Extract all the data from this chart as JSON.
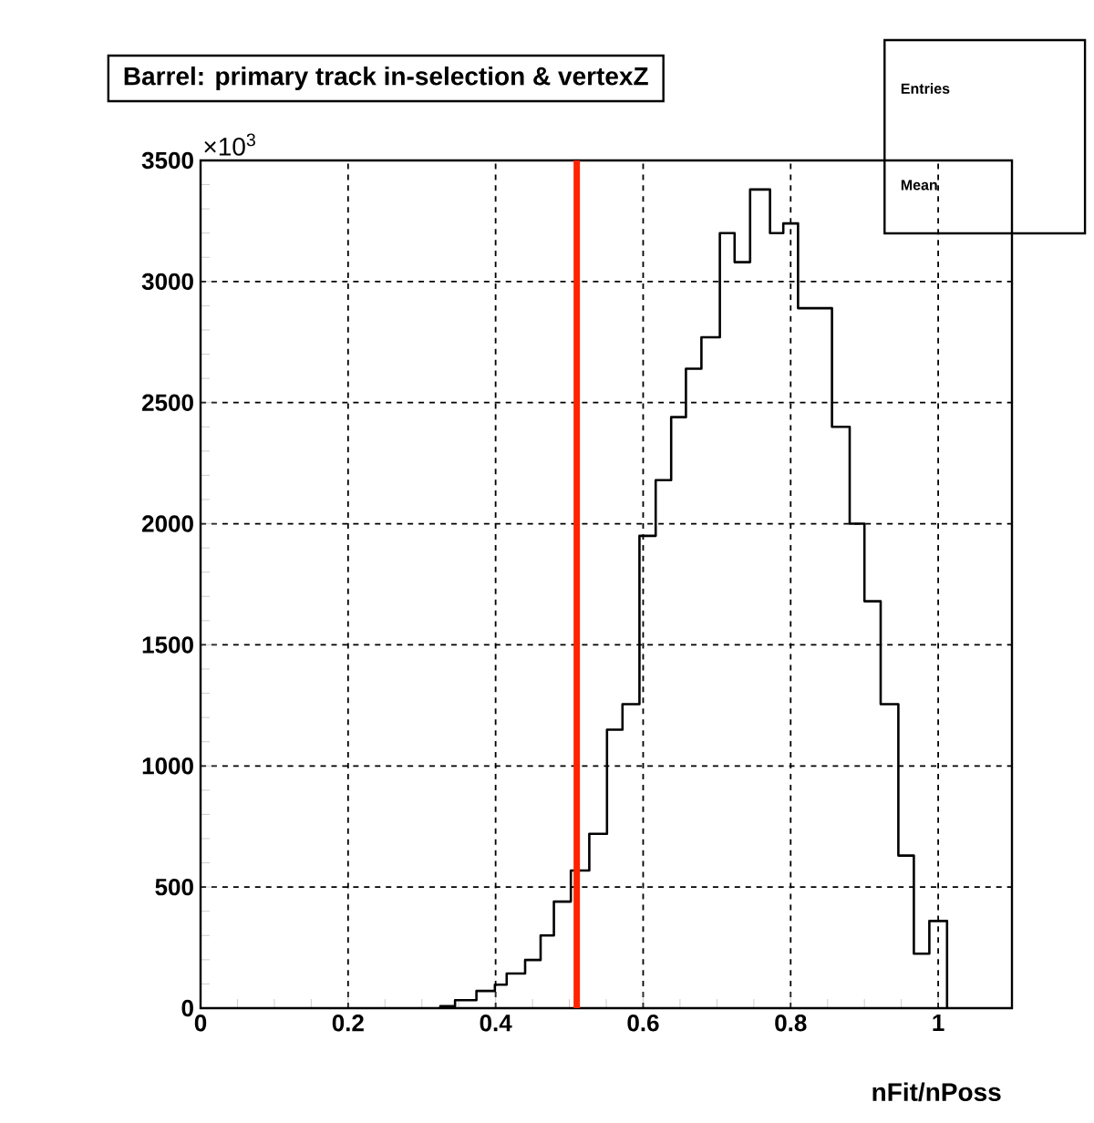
{
  "chart_data": {
    "type": "histogram",
    "title": "Barrel: primary track in-selection & vertexZ",
    "xlabel": "nFit/nPoss",
    "ylabel": "×10$^{3}$",
    "bins": [
      0.325,
      0.345,
      0.374,
      0.399,
      0.415,
      0.44,
      0.461,
      0.479,
      0.502,
      0.527,
      0.551,
      0.572,
      0.595,
      0.617,
      0.638,
      0.658,
      0.679,
      0.704,
      0.724,
      0.745,
      0.772,
      0.79,
      0.81,
      0.833,
      0.856,
      0.88,
      0.9,
      0.922,
      0.946,
      0.967,
      0.988,
      1.012
    ],
    "values": [
      8,
      33,
      71,
      97,
      143,
      199,
      300,
      440,
      568,
      720,
      1150,
      1255,
      1950,
      2180,
      2440,
      2640,
      2770,
      3200,
      3080,
      3380,
      3200,
      3240,
      2890,
      2890,
      2400,
      2000,
      1680,
      1255,
      630,
      225,
      360
    ],
    "color": "#000000",
    "xlim": [
      0,
      1.1
    ],
    "ylim": [
      0,
      3500
    ],
    "xticks": [
      0,
      0.2,
      0.4,
      0.6,
      0.8,
      1
    ],
    "yticks": [
      0,
      500,
      1000,
      1500,
      2000,
      2500,
      3000,
      3500
    ],
    "grid": true,
    "ref_lines": [
      {
        "axis": "x",
        "value": 0.51,
        "color": "#ff2200"
      }
    ],
    "annotations": [
      "Entries",
      "Mean"
    ]
  }
}
